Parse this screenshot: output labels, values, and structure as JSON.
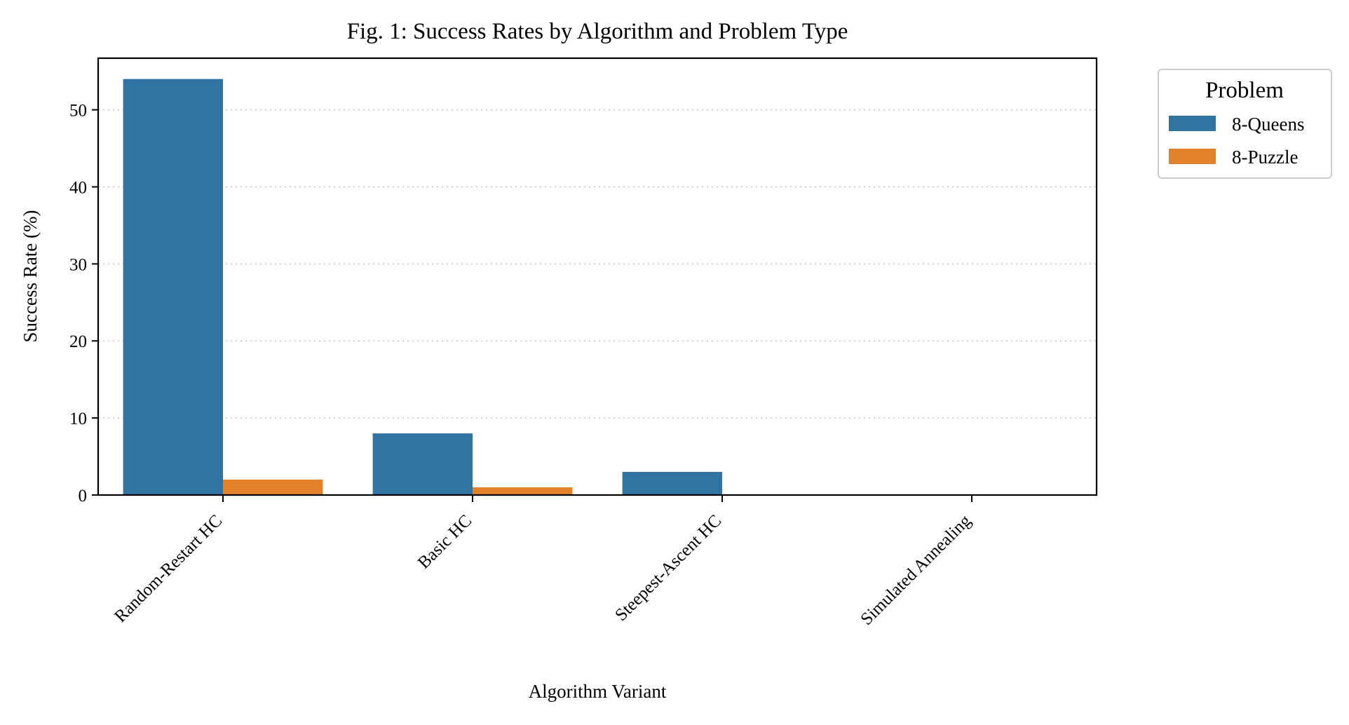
{
  "chart_data": {
    "type": "bar",
    "title": "Fig. 1: Success Rates by Algorithm and Problem Type",
    "xlabel": "Algorithm Variant",
    "ylabel": "Success Rate (%)",
    "categories": [
      "Random-Restart HC",
      "Basic HC",
      "Steepest-Ascent HC",
      "Simulated Annealing"
    ],
    "series": [
      {
        "name": "8-Queens",
        "color": "#3274a1",
        "values": [
          54,
          8,
          3,
          0
        ]
      },
      {
        "name": "8-Puzzle",
        "color": "#e1812c",
        "values": [
          2,
          1,
          0,
          0
        ]
      }
    ],
    "ylim": [
      0,
      56.7
    ],
    "yticks": [
      0,
      10,
      20,
      30,
      40,
      50
    ],
    "grid": "y-dotted",
    "legend": {
      "title": "Problem",
      "placement": "outside-top-right"
    }
  }
}
